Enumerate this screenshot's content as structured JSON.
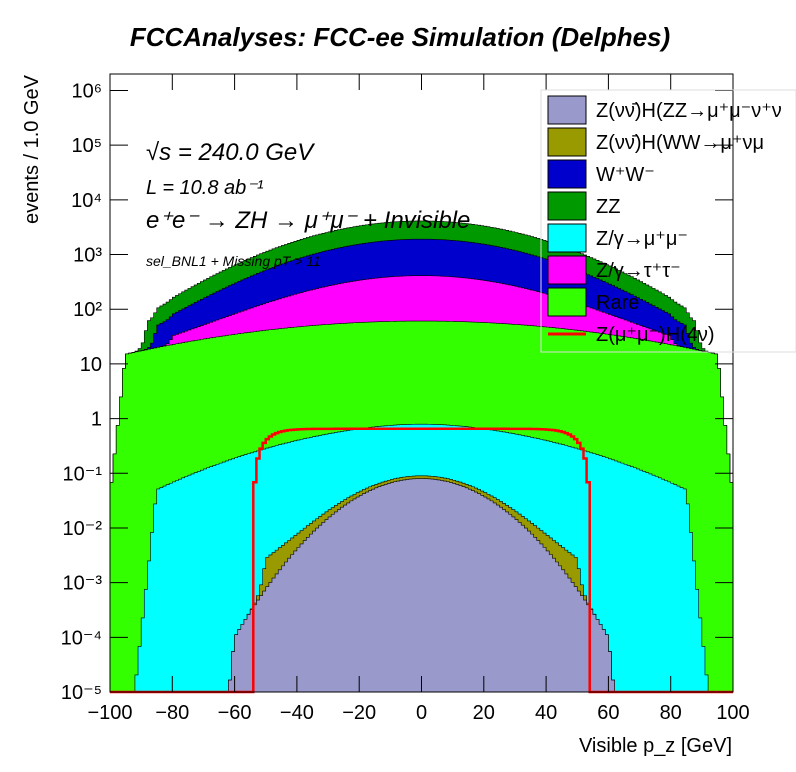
{
  "chart_data": {
    "type": "histogram-stacked",
    "title": "FCCAnalyses: FCC-ee Simulation (Delphes)",
    "xlabel": "Visible p_z [GeV]",
    "ylabel": "events / 1.0 GeV",
    "xlim": [
      -100,
      100
    ],
    "ylim": [
      1e-05,
      2000000.0
    ],
    "yscale": "log",
    "x_ticks": [
      "−100",
      "−80",
      "−60",
      "−40",
      "−20",
      "0",
      "20",
      "40",
      "60",
      "80",
      "100"
    ],
    "y_ticks": [
      "10⁻⁵",
      "10⁻⁴",
      "10⁻³",
      "10⁻²",
      "10⁻¹",
      "1",
      "10",
      "10²",
      "10³",
      "10⁴",
      "10⁵",
      "10⁶"
    ],
    "annotations": {
      "sqrt_s": "√s = 240.0 GeV",
      "lumi": "L = 10.8 ab⁻¹",
      "process": "e⁺e⁻ → ZH → μ⁺μ⁻ + Invisible",
      "selection": "sel_BNL1 + Missing pT > 11"
    },
    "series": [
      {
        "name": "Z(νν̄)H(ZZ→μ⁺μ⁻ν⁺ν",
        "color": "#9999cc",
        "center": 0.08,
        "edge": 0.0001,
        "plateau": 60
      },
      {
        "name": "Z(νν̄)H(WW→μ⁺νμ",
        "color": "#999900",
        "center": 0.01,
        "edge": 0.002,
        "plateau": 50
      },
      {
        "name": "W⁺W⁻",
        "color": "#0000cc",
        "center": 1500,
        "edge": 30,
        "plateau": 85
      },
      {
        "name": "ZZ",
        "color": "#009900",
        "center": 2200,
        "edge": 40,
        "plateau": 88
      },
      {
        "name": "Z/γ→μ⁺μ⁻",
        "color": "#00ffff",
        "center": 0.7,
        "edge": 0.05,
        "plateau": 85
      },
      {
        "name": "Z/γ→τ⁺τ⁻",
        "color": "#ff00ff",
        "center": 350,
        "edge": 10,
        "plateau": 80
      },
      {
        "name": "Rare",
        "color": "#33ff00",
        "center": 60,
        "edge": 15,
        "plateau": 95
      },
      {
        "name": "Z(μ⁺μ⁻)H(4ν)",
        "color": "#ff0000",
        "center": 0.65,
        "edge": 1e-05,
        "plateau": 54,
        "style": "line"
      }
    ]
  }
}
